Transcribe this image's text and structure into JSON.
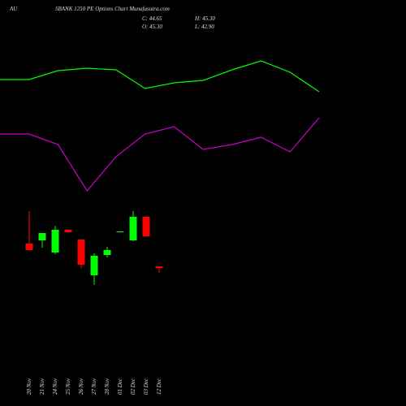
{
  "chart_data": [
    {
      "type": "line",
      "x": [
        0,
        1,
        2,
        3,
        4,
        5,
        6,
        7,
        8,
        9,
        10,
        11
      ],
      "xlim": [
        0,
        11
      ],
      "ylim": [
        0,
        100
      ],
      "series": [
        {
          "color": "#00ff00",
          "values": [
            76,
            76,
            81.5,
            83,
            82,
            70.5,
            74,
            75.5,
            82,
            87.5,
            80.5,
            68.5
          ]
        },
        {
          "color": "#cc00cc",
          "values": [
            42.5,
            42.5,
            36,
            7.5,
            28.5,
            42.5,
            47,
            33,
            36,
            40.5,
            31.5,
            52.5
          ]
        }
      ]
    },
    {
      "type": "candlestick",
      "symbol": "AU",
      "title": "SBANK 1250 PE Options Chart Munafasutra.com",
      "close_label": "C: 44.65",
      "high_label": "H: 45.30",
      "open_label": "O: 45.30",
      "low_label": "L: 42.90",
      "categories": [
        "20 Nov",
        "21 Nov",
        "24 Nov",
        "25 Nov",
        "26 Nov",
        "27 Nov",
        "28 Nov",
        "01 Dec",
        "02 Dec",
        "03 Dec",
        "12 Dec"
      ],
      "open": [
        53.7,
        54.9,
        50.4,
        58.8,
        55.2,
        42.0,
        49.5,
        57.9,
        54.9,
        63.6,
        45.3
      ],
      "high": [
        65.7,
        57.6,
        60.3,
        58.8,
        55.2,
        50.1,
        52.5,
        58.2,
        65.7,
        63.6,
        45.3
      ],
      "low": [
        51.3,
        52.2,
        49.8,
        57.6,
        44.4,
        38.4,
        48.6,
        57.9,
        54.6,
        56.4,
        42.9
      ],
      "close": [
        51.3,
        57.6,
        58.8,
        57.9,
        45.9,
        49.2,
        51.3,
        58.2,
        63.6,
        56.4,
        44.65
      ],
      "up_color": "#00ff00",
      "down_color": "#ff0000",
      "ylim": [
        35.7,
        68.7
      ]
    }
  ]
}
